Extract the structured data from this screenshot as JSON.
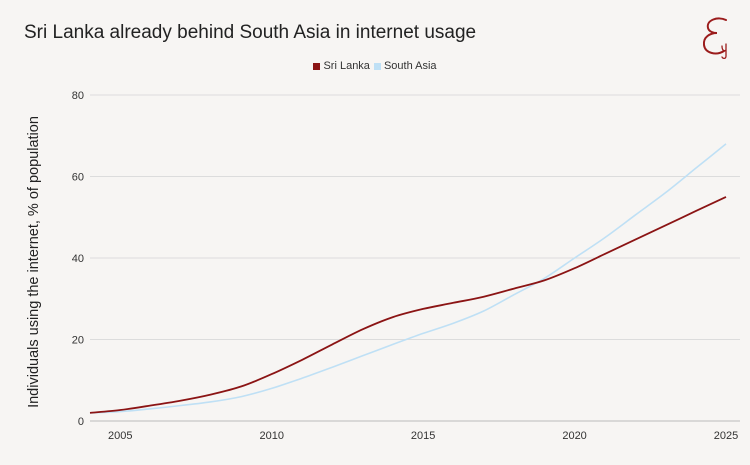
{
  "title": "Sri Lanka already behind South Asia in internet usage",
  "logo": {
    "icon": "monogram-logo-icon",
    "color": "#9b1c1c"
  },
  "colors": {
    "sri_lanka": "#8b1414",
    "south_asia": "#bfe0f5",
    "grid": "#dcdcdc",
    "text": "#222222"
  },
  "chart_data": {
    "type": "line",
    "title": "Sri Lanka already behind South Asia in internet usage",
    "xlabel": "",
    "ylabel": "Individuals using the internet, % of population",
    "xlim": [
      2004,
      2025
    ],
    "ylim": [
      0,
      80
    ],
    "xticks": [
      2005,
      2010,
      2015,
      2020,
      2025
    ],
    "yticks": [
      0,
      20,
      40,
      60,
      80
    ],
    "grid": true,
    "legend": "top-center",
    "series": [
      {
        "name": "Sri Lanka",
        "color": "#8b1414",
        "points": [
          [
            2004,
            2
          ],
          [
            2005,
            2.7
          ],
          [
            2006,
            3.8
          ],
          [
            2007,
            5
          ],
          [
            2008,
            6.5
          ],
          [
            2009,
            8.5
          ],
          [
            2010,
            11.5
          ],
          [
            2011,
            15
          ],
          [
            2012,
            18.8
          ],
          [
            2013,
            22.5
          ],
          [
            2014,
            25.5
          ],
          [
            2015,
            27.5
          ],
          [
            2016,
            29
          ],
          [
            2017,
            30.5
          ],
          [
            2018,
            32.5
          ],
          [
            2019,
            34.5
          ],
          [
            2020,
            37.5
          ],
          [
            2021,
            41
          ],
          [
            2022,
            44.5
          ],
          [
            2023,
            48
          ],
          [
            2024,
            51.5
          ],
          [
            2025,
            55
          ]
        ]
      },
      {
        "name": "South Asia",
        "color": "#bfe0f5",
        "points": [
          [
            2004,
            2
          ],
          [
            2005,
            2.3
          ],
          [
            2006,
            3
          ],
          [
            2007,
            3.8
          ],
          [
            2008,
            4.7
          ],
          [
            2009,
            6
          ],
          [
            2010,
            8
          ],
          [
            2011,
            10.5
          ],
          [
            2012,
            13.2
          ],
          [
            2013,
            16
          ],
          [
            2014,
            18.8
          ],
          [
            2015,
            21.5
          ],
          [
            2016,
            24
          ],
          [
            2017,
            27
          ],
          [
            2018,
            31
          ],
          [
            2019,
            35
          ],
          [
            2020,
            40
          ],
          [
            2021,
            45
          ],
          [
            2022,
            50.5
          ],
          [
            2023,
            56
          ],
          [
            2024,
            62
          ],
          [
            2025,
            68
          ]
        ]
      }
    ]
  }
}
